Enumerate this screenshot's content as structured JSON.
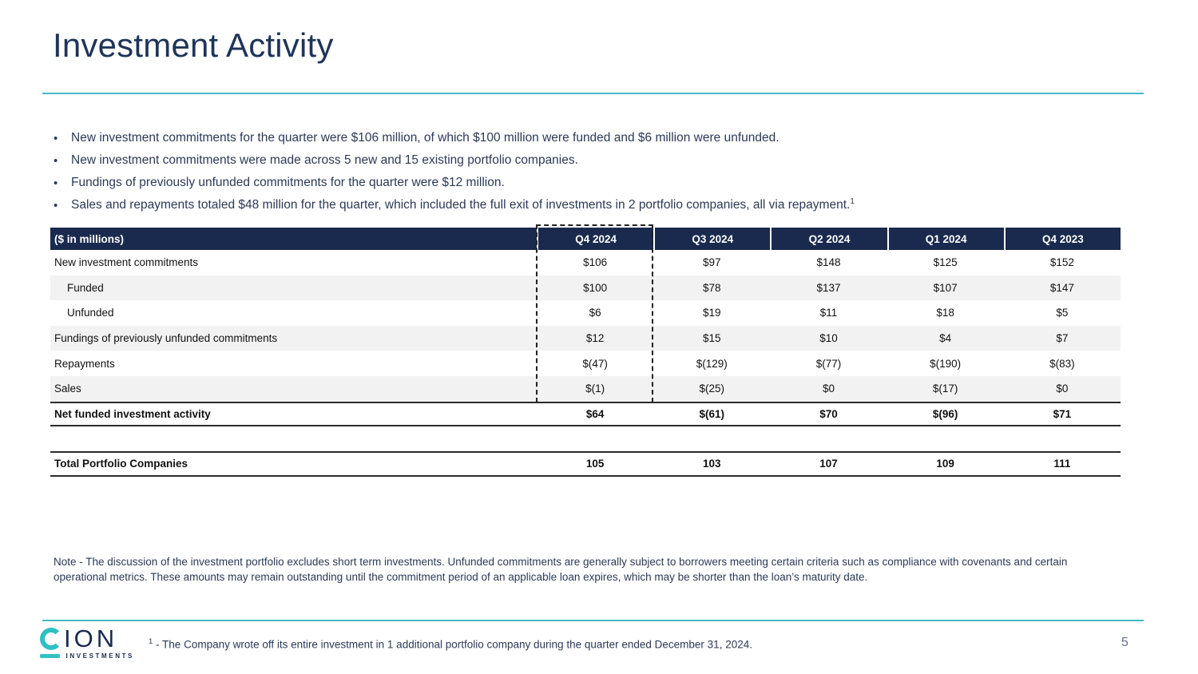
{
  "page": {
    "title": "Investment Activity",
    "page_number": "5"
  },
  "bullets": [
    {
      "text": "New investment commitments for the quarter were $106 million, of which $100 million were funded and $6 million were unfunded.",
      "sup": ""
    },
    {
      "text": "New investment commitments were made across 5 new and 15 existing portfolio companies.",
      "sup": ""
    },
    {
      "text": "Fundings of previously unfunded commitments for the quarter were $12 million.",
      "sup": ""
    },
    {
      "text": "Sales and repayments totaled $48 million for the quarter, which included the full exit of investments in 2 portfolio companies, all via repayment.",
      "sup": "1"
    }
  ],
  "table": {
    "corner_label": "($ in millions)",
    "columns": [
      "Q4 2024",
      "Q3 2024",
      "Q2 2024",
      "Q1 2024",
      "Q4 2023"
    ],
    "rows": [
      {
        "label": "New investment commitments",
        "indent": false,
        "strong": false,
        "values": [
          "$106",
          "$97",
          "$148",
          "$125",
          "$152"
        ]
      },
      {
        "label": "Funded",
        "indent": true,
        "strong": false,
        "values": [
          "$100",
          "$78",
          "$137",
          "$107",
          "$147"
        ]
      },
      {
        "label": "Unfunded",
        "indent": true,
        "strong": false,
        "values": [
          "$6",
          "$19",
          "$11",
          "$18",
          "$5"
        ]
      },
      {
        "label": "Fundings of previously unfunded commitments",
        "indent": false,
        "strong": false,
        "values": [
          "$12",
          "$15",
          "$10",
          "$4",
          "$7"
        ]
      },
      {
        "label": "Repayments",
        "indent": false,
        "strong": false,
        "values": [
          "$(47)",
          "$(129)",
          "$(77)",
          "$(190)",
          "$(83)"
        ]
      },
      {
        "label": "Sales",
        "indent": false,
        "strong": false,
        "values": [
          "$(1)",
          "$(25)",
          "$0",
          "$(17)",
          "$0"
        ]
      },
      {
        "label": "Net funded investment activity",
        "indent": false,
        "strong": true,
        "values": [
          "$64",
          "$(61)",
          "$70",
          "$(96)",
          "$71"
        ]
      }
    ],
    "total_row": {
      "label": "Total Portfolio Companies",
      "values": [
        "105",
        "103",
        "107",
        "109",
        "111"
      ]
    },
    "highlighted_column": "Q4 2024"
  },
  "note": {
    "text": "Note - The discussion of the investment portfolio excludes short term investments. Unfunded commitments are generally subject to borrowers meeting certain criteria such as compliance with covenants and certain operational metrics. These amounts may remain outstanding until the commitment period of an applicable loan expires, which may be shorter than the loan’s maturity date."
  },
  "footer": {
    "footnote_sup": "1",
    "footnote_text": " - The Company wrote off its entire investment in 1 additional portfolio company during the quarter ended December 31, 2024.",
    "logo_ion": "ION",
    "logo_sub": "INVESTMENTS"
  },
  "colors": {
    "accent_teal": "#45b9c3",
    "header_navy": "#1a2a4f",
    "title_navy": "#1f3459",
    "body_navy": "#2b3a55",
    "row_stripe": "#f2f2f2",
    "logo_teal": "#2fc0c4",
    "logo_navy": "#1b2b50",
    "page_number_gray": "#64748b"
  }
}
